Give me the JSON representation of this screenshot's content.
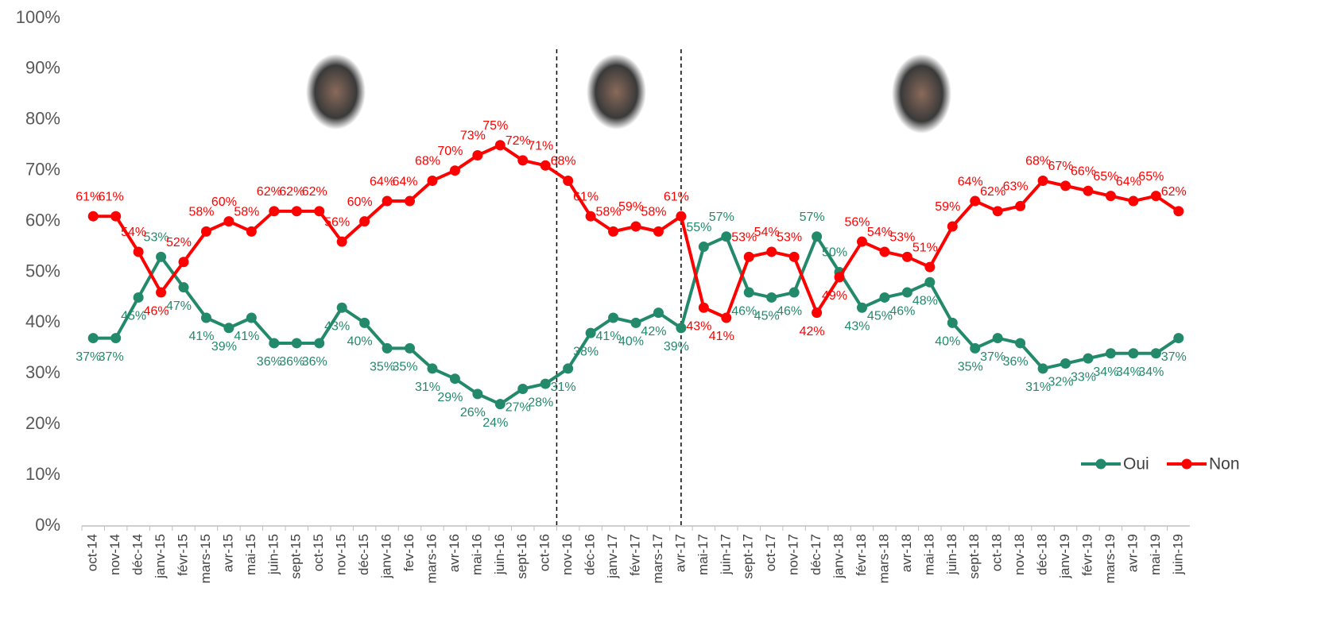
{
  "chart_data": {
    "type": "line",
    "categories": [
      "oct-14",
      "nov-14",
      "déc-14",
      "janv-15",
      "févr-15",
      "mars-15",
      "avr-15",
      "mai-15",
      "juin-15",
      "sept-15",
      "oct-15",
      "nov-15",
      "déc-15",
      "janv-16",
      "fev-16",
      "mars-16",
      "avr-16",
      "mai-16",
      "juin-16",
      "sept-16",
      "oct-16",
      "nov-16",
      "déc-16",
      "janv-17",
      "févr-17",
      "mars-17",
      "avr-17",
      "mai-17",
      "juin-17",
      "sept-17",
      "oct-17",
      "nov-17",
      "déc-17",
      "janv-18",
      "févr-18",
      "mars-18",
      "avr-18",
      "mai-18",
      "juin-18",
      "sept-18",
      "oct-18",
      "nov-18",
      "déc-18",
      "janv-19",
      "févr-19",
      "mars-19",
      "avr-19",
      "mai-19",
      "juin-19"
    ],
    "series": [
      {
        "name": "Oui",
        "color": "#23896b",
        "values": [
          37,
          37,
          45,
          53,
          47,
          41,
          39,
          41,
          36,
          36,
          36,
          43,
          40,
          35,
          35,
          31,
          29,
          26,
          24,
          27,
          28,
          31,
          38,
          41,
          40,
          42,
          39,
          55,
          57,
          46,
          45,
          46,
          57,
          50,
          43,
          45,
          46,
          48,
          40,
          35,
          37,
          36,
          31,
          32,
          33,
          34,
          34,
          34,
          37
        ],
        "value_labels": [
          "37%",
          "37%",
          "45%",
          "53%",
          "47%",
          "41%",
          "39%",
          "41%",
          "36%",
          "36%",
          "36%",
          "43%",
          "40%",
          "35%",
          "35%",
          "31%",
          "29%",
          "26%",
          "24%",
          "27%",
          "28%",
          "31%",
          "38%",
          "41%",
          "40%",
          "42%",
          "39%",
          "55%",
          "57%",
          "46%",
          "45%",
          "46%",
          "57%",
          "50%",
          "43%",
          "45%",
          "46%",
          "48%",
          "40%",
          "35%",
          "37%",
          "36%",
          "31%",
          "32%",
          "33%",
          "34%",
          "34%",
          "34%",
          "37%"
        ]
      },
      {
        "name": "Non",
        "color": "#ff0000",
        "values": [
          61,
          61,
          54,
          46,
          52,
          58,
          60,
          58,
          62,
          62,
          62,
          56,
          60,
          64,
          64,
          68,
          70,
          73,
          75,
          72,
          71,
          68,
          61,
          58,
          59,
          58,
          61,
          43,
          41,
          53,
          54,
          53,
          42,
          49,
          56,
          54,
          53,
          51,
          59,
          64,
          62,
          63,
          68,
          67,
          66,
          65,
          64,
          65,
          62
        ],
        "value_labels": [
          "61%",
          "61%",
          "54%",
          "46%",
          "52%",
          "58%",
          "60%",
          "58%",
          "62%",
          "62%",
          "62%",
          "56%",
          "60%",
          "64%",
          "64%",
          "68%",
          "70%",
          "73%",
          "75%",
          "72%",
          "71%",
          "68%",
          "61%",
          "58%",
          "59%",
          "58%",
          "61%",
          "43%",
          "41%",
          "53%",
          "54%",
          "53%",
          "42%",
          "49%",
          "56%",
          "54%",
          "53%",
          "51%",
          "59%",
          "64%",
          "62%",
          "63%",
          "68%",
          "67%",
          "66%",
          "65%",
          "64%",
          "65%",
          "62%"
        ]
      }
    ],
    "ylim": [
      0,
      100
    ],
    "yticks": [
      {
        "value": 0,
        "label": "0%"
      },
      {
        "value": 10,
        "label": "10%"
      },
      {
        "value": 20,
        "label": "20%"
      },
      {
        "value": 30,
        "label": "30%"
      },
      {
        "value": 40,
        "label": "40%"
      },
      {
        "value": 50,
        "label": "50%"
      },
      {
        "value": 60,
        "label": "60%"
      },
      {
        "value": 70,
        "label": "70%"
      },
      {
        "value": 80,
        "label": "80%"
      },
      {
        "value": 90,
        "label": "90%"
      },
      {
        "value": 100,
        "label": "100%"
      }
    ],
    "grid": false,
    "legend": "right"
  }
}
